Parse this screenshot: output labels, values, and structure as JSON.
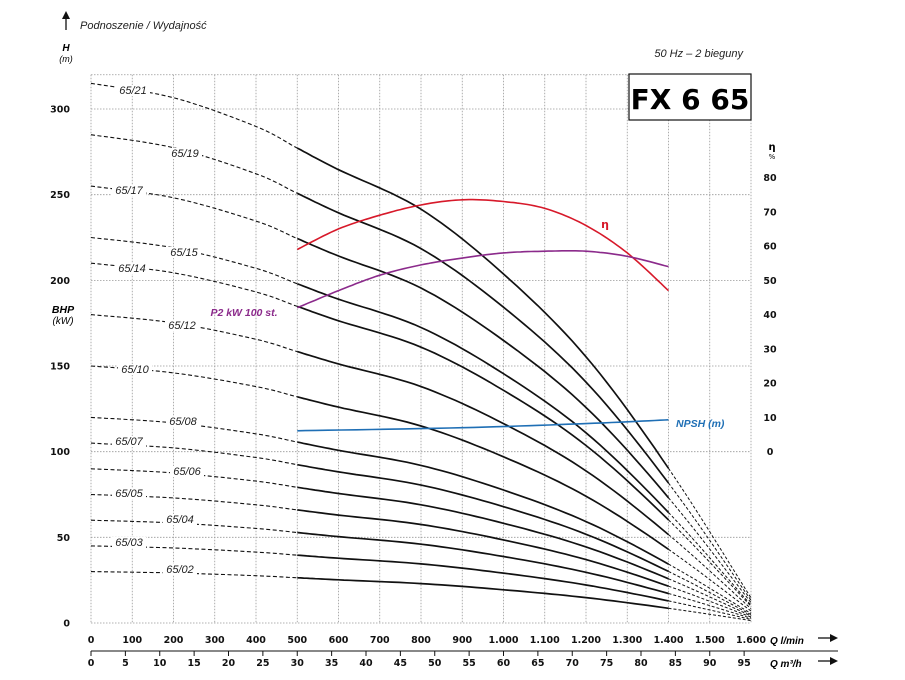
{
  "chart_data": {
    "type": "line",
    "title": "FX 6 65",
    "subtitle": "50 Hz – 2 bieguny",
    "header": "Podnoszenie / Wydajność",
    "ylabel": "H",
    "yunit": "(m)",
    "ylabel2": "BHP",
    "yunit2": "(kW)",
    "eta_axis_label": "η",
    "eta_axis_unit": "%",
    "xlabel_lmin": "Q l/min",
    "xlabel_m3h": "Q m³/h",
    "ylim": [
      0,
      320
    ],
    "xlim": [
      0,
      1600
    ],
    "grid": true,
    "y_ticks": [
      "0",
      "50",
      "100",
      "150",
      "200",
      "250",
      "300"
    ],
    "eta_ticks": [
      "0",
      "10",
      "20",
      "30",
      "40",
      "50",
      "60",
      "70",
      "80"
    ],
    "x_ticks_lmin": [
      "0",
      "100",
      "200",
      "300",
      "400",
      "500",
      "600",
      "700",
      "800",
      "900",
      "1.000",
      "1.100",
      "1.200",
      "1.300",
      "1.400",
      "1.500",
      "1.600"
    ],
    "x_ticks_m3h": [
      "0",
      "5",
      "10",
      "15",
      "20",
      "25",
      "30",
      "35",
      "40",
      "45",
      "50",
      "55",
      "60",
      "65",
      "70",
      "75",
      "80",
      "85",
      "90",
      "95"
    ],
    "q": [
      0,
      200,
      400,
      500,
      600,
      800,
      1000,
      1200,
      1400,
      1600
    ],
    "series": [
      {
        "name": "65/21",
        "values": [
          315,
          306.6,
          289.8,
          277.2,
          264.6,
          241.5,
          203.7,
          155.4,
          90.3,
          14.7
        ]
      },
      {
        "name": "65/19",
        "values": [
          285,
          277.4,
          262.2,
          250.8,
          239.4,
          218.5,
          184.3,
          140.6,
          81.7,
          13.3
        ]
      },
      {
        "name": "65/17",
        "values": [
          255,
          248.2,
          234.6,
          224.4,
          214.2,
          195.5,
          164.9,
          125.8,
          73.1,
          11.9
        ]
      },
      {
        "name": "65/15",
        "values": [
          225,
          219,
          207,
          198,
          189,
          172.5,
          145.5,
          111,
          64.5,
          10.5
        ]
      },
      {
        "name": "65/14",
        "values": [
          210,
          204.4,
          193.2,
          184.8,
          176.4,
          161,
          135.8,
          103.6,
          60.2,
          9.8
        ]
      },
      {
        "name": "65/12",
        "values": [
          180,
          175.2,
          165.6,
          158.4,
          151.2,
          138,
          116.4,
          88.8,
          51.6,
          8.4
        ]
      },
      {
        "name": "65/10",
        "values": [
          150,
          146,
          138,
          132,
          126,
          115,
          97,
          74,
          43,
          7
        ]
      },
      {
        "name": "65/08",
        "values": [
          120,
          116.8,
          110.4,
          105.6,
          100.8,
          92,
          77.6,
          59.2,
          34.4,
          5.6
        ]
      },
      {
        "name": "65/07",
        "values": [
          105,
          102.2,
          96.6,
          92.4,
          88.2,
          80.5,
          67.9,
          51.8,
          30.1,
          4.9
        ]
      },
      {
        "name": "65/06",
        "values": [
          90,
          87.6,
          82.8,
          79.2,
          75.6,
          69,
          58.2,
          44.4,
          25.8,
          4.2
        ]
      },
      {
        "name": "65/05",
        "values": [
          75,
          73,
          69,
          66,
          63,
          57.5,
          48.5,
          37,
          21.5,
          3.5
        ]
      },
      {
        "name": "65/04",
        "values": [
          60,
          58.4,
          55.2,
          52.8,
          50.4,
          46,
          38.8,
          29.6,
          17.2,
          2.8
        ]
      },
      {
        "name": "65/03",
        "values": [
          45,
          43.8,
          41.4,
          39.6,
          37.8,
          34.5,
          29.1,
          22.2,
          12.9,
          2.1
        ]
      },
      {
        "name": "65/02",
        "values": [
          30,
          29.2,
          27.6,
          26.4,
          25.2,
          23,
          19.4,
          14.8,
          8.6,
          1.4
        ]
      }
    ],
    "efficiency": {
      "name": "η",
      "color": "#d7192a",
      "q": [
        500,
        600,
        700,
        800,
        900,
        1000,
        1100,
        1200,
        1300,
        1400
      ],
      "values": [
        59,
        65,
        69,
        72,
        73.5,
        73,
        71,
        66,
        58,
        47
      ]
    },
    "power": {
      "name": "P2 kW 100 st.",
      "color": "#8b2a8b",
      "q": [
        500,
        600,
        700,
        800,
        900,
        1000,
        1100,
        1200,
        1300,
        1400
      ],
      "values": [
        184,
        194,
        203,
        209,
        213,
        216,
        217,
        217,
        214,
        208
      ]
    },
    "npsh": {
      "name": "NPSH (m)",
      "color": "#1f6fb5",
      "q": [
        500,
        900,
        1200,
        1400
      ],
      "values": [
        6.1,
        7,
        8.2,
        9.3
      ]
    }
  }
}
